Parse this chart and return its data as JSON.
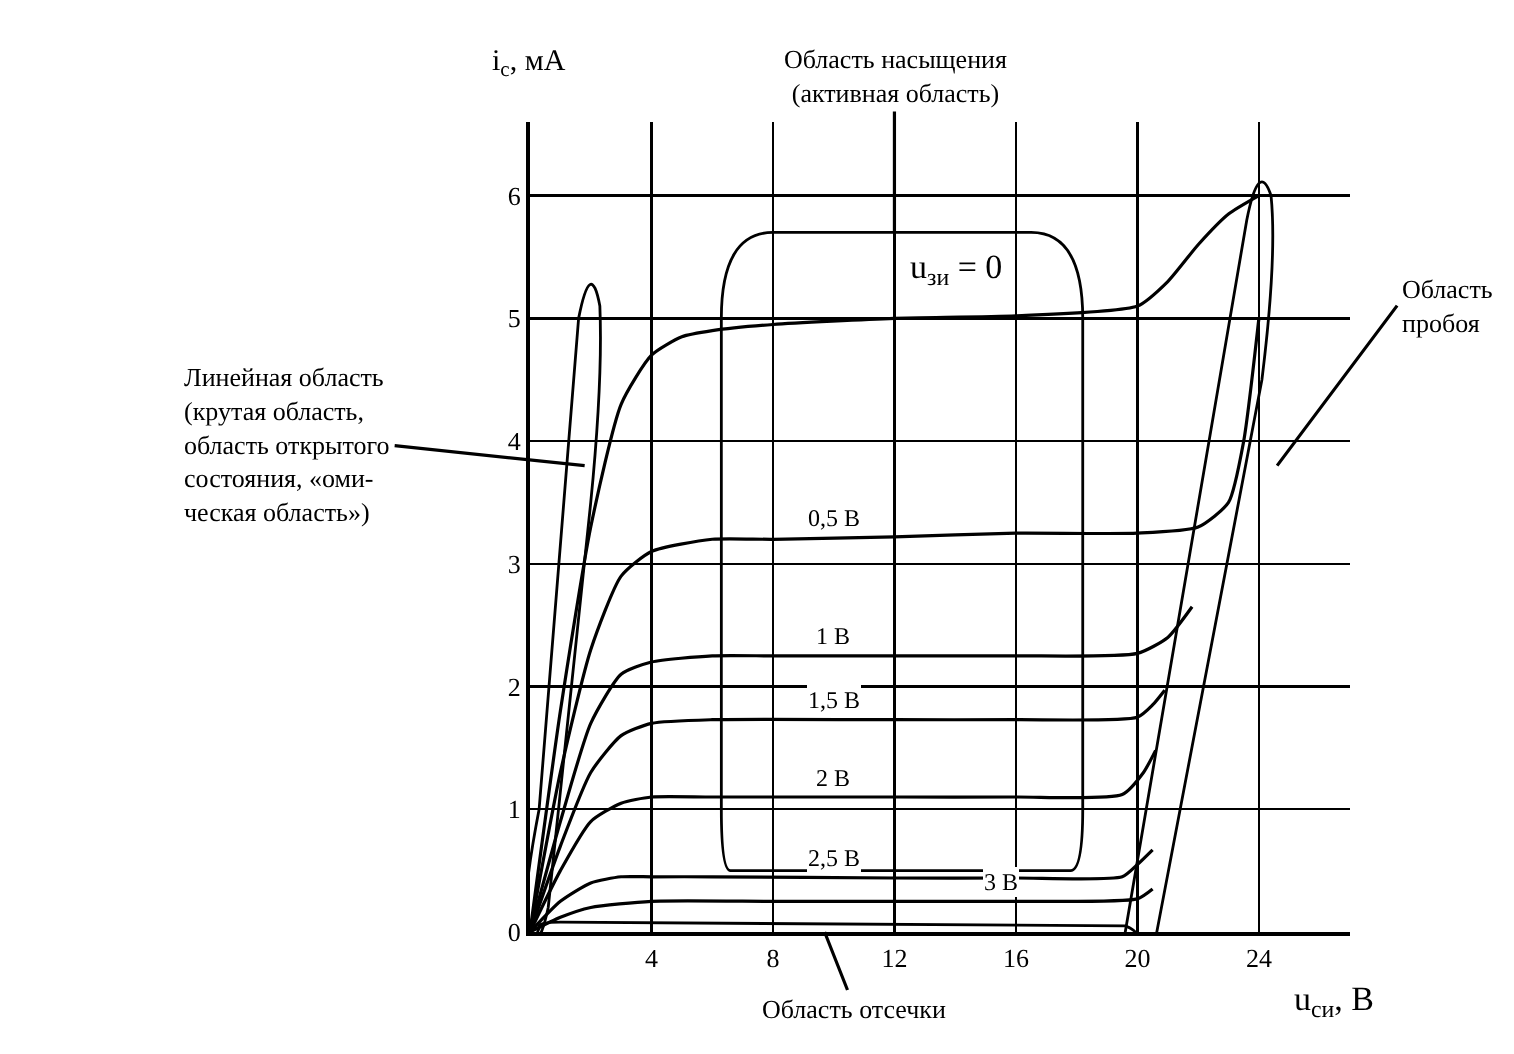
{
  "chart_data": {
    "type": "line",
    "xlabel": "u$_{си}$, В",
    "ylabel": "i$_{с}$, мА",
    "xlim": [
      0,
      27
    ],
    "ylim": [
      0,
      6.6
    ],
    "xticks": [
      4,
      8,
      12,
      16,
      20,
      24
    ],
    "yticks": [
      0,
      1,
      2,
      3,
      4,
      5,
      6
    ],
    "grid": true,
    "legend": false,
    "marker": "none",
    "line_style": "solid",
    "series": [
      {
        "name": "u$_{зи}$ = 0",
        "color": "#000000",
        "x": [
          0,
          1,
          2,
          3,
          4,
          5,
          6,
          8,
          12,
          16,
          20,
          21,
          22,
          23,
          24
        ],
        "values": [
          0,
          1.8,
          3.3,
          4.3,
          4.7,
          4.85,
          4.9,
          4.95,
          5.0,
          5.02,
          5.1,
          5.3,
          5.6,
          5.85,
          6.0
        ]
      },
      {
        "name": "0,5 В",
        "color": "#000000",
        "x": [
          0,
          1,
          2,
          3,
          4,
          6,
          8,
          12,
          16,
          20,
          22,
          23,
          23.5,
          24
        ],
        "values": [
          0,
          1.3,
          2.3,
          2.9,
          3.1,
          3.2,
          3.2,
          3.22,
          3.25,
          3.25,
          3.3,
          3.5,
          4.0,
          5.0
        ]
      },
      {
        "name": "1 В",
        "color": "#000000",
        "x": [
          0,
          1,
          2,
          3,
          4,
          6,
          8,
          12,
          16,
          20,
          21,
          21.8
        ],
        "values": [
          0,
          0.9,
          1.7,
          2.1,
          2.2,
          2.25,
          2.25,
          2.25,
          2.25,
          2.27,
          2.4,
          2.65
        ]
      },
      {
        "name": "1,5 В",
        "color": "#000000",
        "x": [
          0,
          1,
          2,
          3,
          4,
          6,
          12,
          16,
          20,
          20.5,
          20.9
        ],
        "values": [
          0,
          0.7,
          1.3,
          1.6,
          1.7,
          1.73,
          1.73,
          1.73,
          1.75,
          1.85,
          1.97
        ]
      },
      {
        "name": "2 В",
        "color": "#000000",
        "x": [
          0,
          1,
          2,
          3,
          4,
          6,
          12,
          16,
          19.5,
          20.2,
          20.6
        ],
        "values": [
          0,
          0.5,
          0.9,
          1.05,
          1.1,
          1.1,
          1.1,
          1.1,
          1.12,
          1.3,
          1.48
        ]
      },
      {
        "name": "2,5 В",
        "color": "#000000",
        "x": [
          0,
          1,
          2,
          3,
          4,
          6,
          12,
          16,
          19.5,
          20,
          20.5
        ],
        "values": [
          0,
          0.25,
          0.4,
          0.45,
          0.45,
          0.45,
          0.44,
          0.44,
          0.45,
          0.55,
          0.67
        ]
      },
      {
        "name": "3 В",
        "color": "#000000",
        "x": [
          0,
          1,
          2,
          4,
          8,
          12,
          16,
          20,
          20.5
        ],
        "values": [
          0,
          0.12,
          0.2,
          0.25,
          0.25,
          0.25,
          0.25,
          0.27,
          0.35
        ]
      }
    ],
    "annotations": [
      "Область насыщения\n(активная область)",
      "Область\nпробоя",
      "Линейная область\n(крутая область,\nобласть открытого\nсостояния, «оми-\nческая область»)",
      "Область отсечки"
    ]
  }
}
